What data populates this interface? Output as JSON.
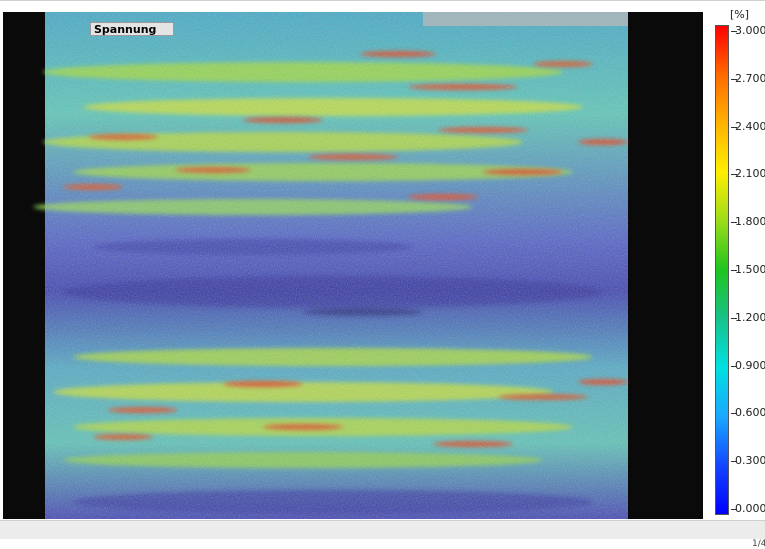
{
  "overlay": {
    "label": "Spannung"
  },
  "legend": {
    "unit": "[%]",
    "ticks": [
      "3.000",
      "2.700",
      "2.400",
      "2.100",
      "1.800",
      "1.500",
      "1.200",
      "0.900",
      "0.600",
      "0.300",
      "0.000"
    ],
    "color_low": "#0000ff",
    "color_high": "#ff0000"
  },
  "status": {
    "page": "1/4"
  }
}
